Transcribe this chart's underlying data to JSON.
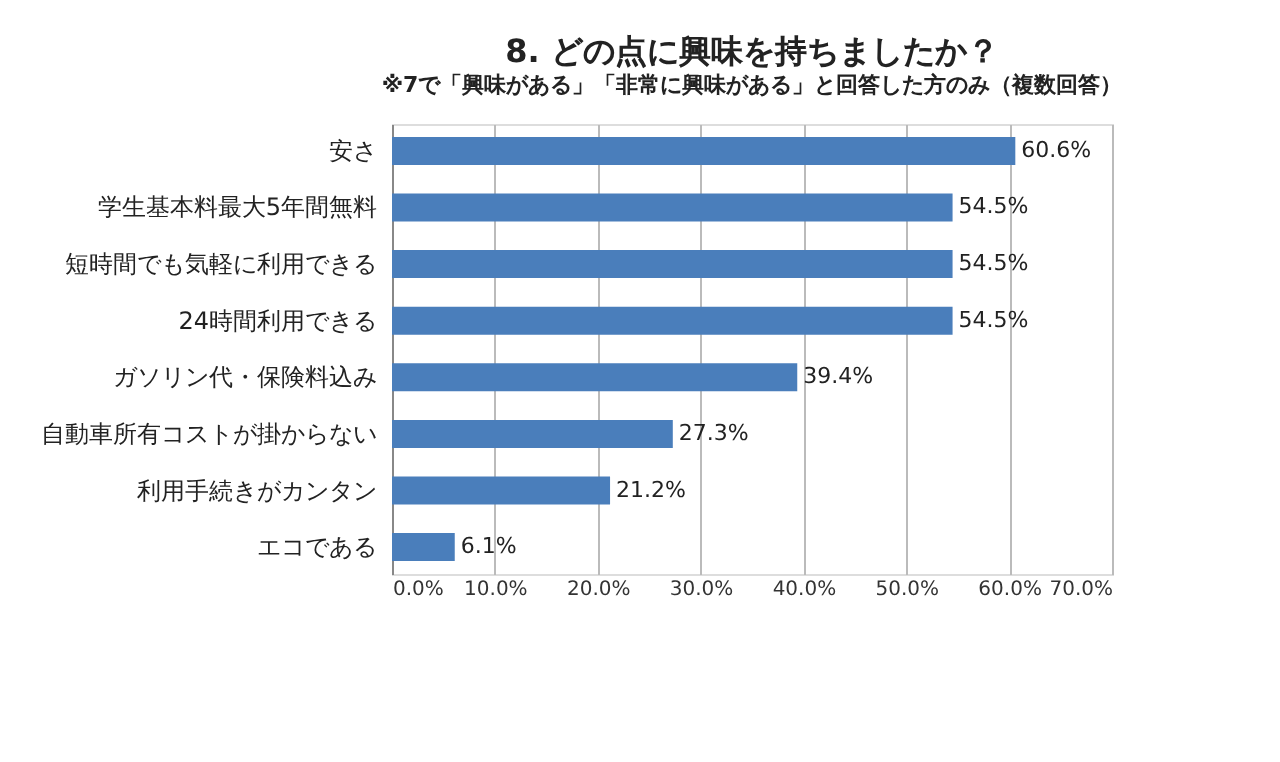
{
  "chart_data": {
    "type": "bar",
    "orientation": "horizontal",
    "title": "8. どの点に興味を持ちましたか？",
    "subtitle": "※7で「興味がある」「非常に興味がある」と回答した方のみ（複数回答）",
    "categories": [
      "安さ",
      "学生基本料最大5年間無料",
      "短時間でも気軽に利用できる",
      "24時間利用できる",
      "ガソリン代・保険料込み",
      "自動車所有コストが掛からない",
      "利用手続きがカンタン",
      "エコである"
    ],
    "values": [
      60.6,
      54.5,
      54.5,
      54.5,
      39.4,
      27.3,
      21.2,
      6.1
    ],
    "value_labels": [
      "60.6%",
      "54.5%",
      "54.5%",
      "54.5%",
      "39.4%",
      "27.3%",
      "21.2%",
      "6.1%"
    ],
    "color": "#4a7ebb",
    "xlim": [
      0,
      70
    ],
    "xticks": [
      {
        "value": 0,
        "label": "0.0%"
      },
      {
        "value": 10,
        "label": "10.0%"
      },
      {
        "value": 20,
        "label": "20.0%"
      },
      {
        "value": 30,
        "label": "30.0%"
      },
      {
        "value": 40,
        "label": "40.0%"
      },
      {
        "value": 50,
        "label": "50.0%"
      },
      {
        "value": 60,
        "label": "60.0%"
      },
      {
        "value": 70,
        "label": "70.0%"
      }
    ],
    "grid": "x"
  }
}
